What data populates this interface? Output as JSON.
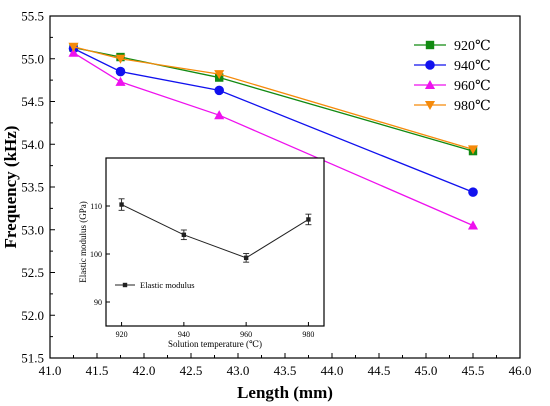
{
  "chart_data": [
    {
      "type": "line",
      "title": "",
      "xlabel": "Length (mm)",
      "ylabel": "Frequency (kHz)",
      "xlim": [
        41.0,
        46.0
      ],
      "ylim": [
        51.5,
        55.5
      ],
      "xticks": [
        "41.0",
        "41.5",
        "42.0",
        "42.5",
        "43.0",
        "43.5",
        "44.0",
        "44.5",
        "45.0",
        "45.5",
        "46.0"
      ],
      "yticks": [
        "51.5",
        "52.0",
        "52.5",
        "53.0",
        "53.5",
        "54.0",
        "54.5",
        "55.0",
        "55.5"
      ],
      "x": [
        41.25,
        41.75,
        42.8,
        45.5
      ],
      "legend_position": "top-right",
      "series": [
        {
          "name": "920℃",
          "marker": "square",
          "color": "#128a12",
          "values": [
            55.13,
            55.02,
            54.78,
            53.92
          ]
        },
        {
          "name": "940℃",
          "marker": "circle",
          "color": "#1111ee",
          "values": [
            55.12,
            54.85,
            54.63,
            53.44
          ]
        },
        {
          "name": "960℃",
          "marker": "triangle-up",
          "color": "#ee11ee",
          "values": [
            55.07,
            54.73,
            54.34,
            53.05
          ]
        },
        {
          "name": "980℃",
          "marker": "triangle-down",
          "color": "#f58a0a",
          "values": [
            55.14,
            55.0,
            54.82,
            53.94
          ]
        }
      ]
    },
    {
      "type": "line",
      "title": "",
      "xlabel": "Solution temperature (℃)",
      "ylabel": "Elastic modulus (GPa)",
      "xlim": [
        915,
        985
      ],
      "ylim": [
        85,
        120
      ],
      "xticks": [
        "920",
        "940",
        "960",
        "980"
      ],
      "yticks": [
        "90",
        "100",
        "110"
      ],
      "legend_position": "lower-left",
      "series": [
        {
          "name": "Elastic modulus",
          "marker": "square",
          "color": "#222222",
          "x": [
            920,
            940,
            960,
            980
          ],
          "values": [
            110.3,
            104.0,
            99.2,
            107.2
          ],
          "error": [
            1.2,
            1.0,
            0.9,
            1.1
          ]
        }
      ]
    }
  ]
}
